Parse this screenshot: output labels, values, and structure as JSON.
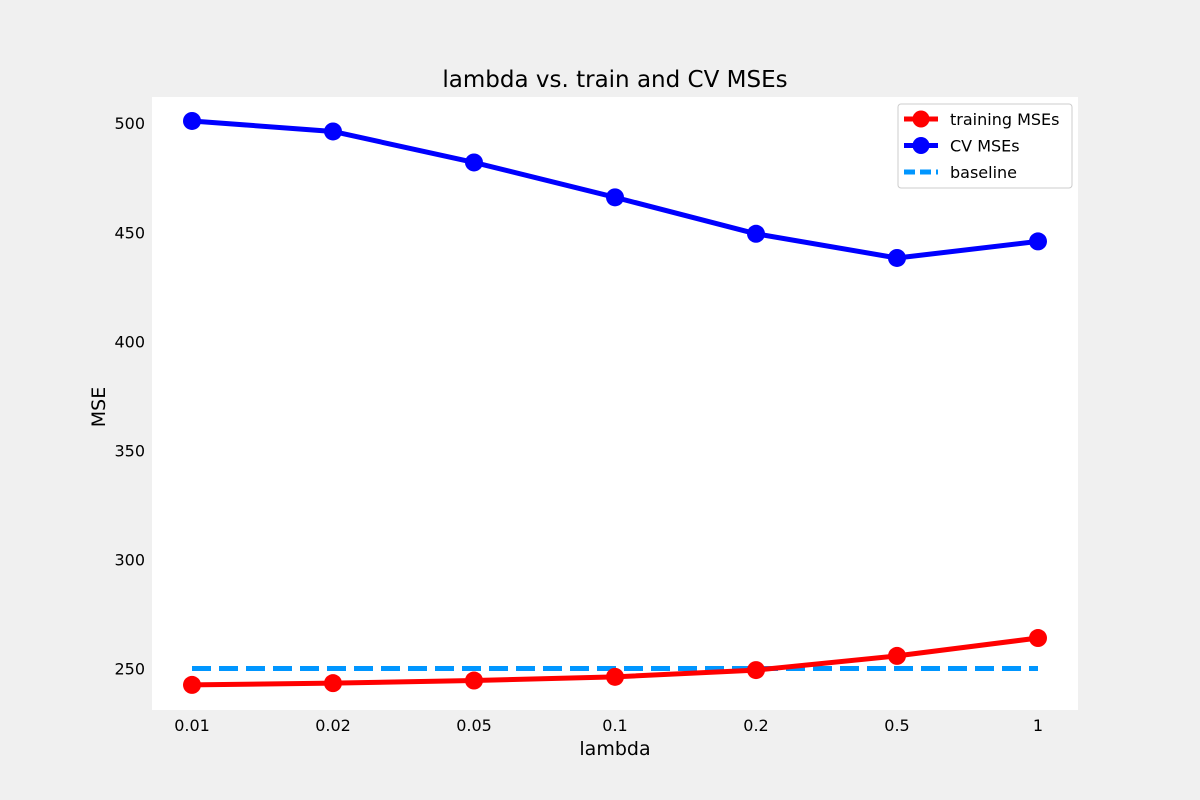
{
  "chart_data": {
    "type": "line",
    "title": "lambda vs. train and CV MSEs",
    "xlabel": "lambda",
    "ylabel": "MSE",
    "categories": [
      "0.01",
      "0.02",
      "0.05",
      "0.1",
      "0.2",
      "0.5",
      "1"
    ],
    "ylim": [
      231,
      512
    ],
    "yticks": [
      250,
      300,
      350,
      400,
      450,
      500
    ],
    "grid": false,
    "legend_position": "top-right",
    "series": [
      {
        "name": "training MSEs",
        "color": "#ff0000",
        "marker": "circle",
        "linestyle": "solid",
        "values": [
          242.5,
          243.3,
          244.5,
          246.2,
          249.3,
          255.8,
          264.0
        ]
      },
      {
        "name": "CV MSEs",
        "color": "#0000ff",
        "marker": "circle",
        "linestyle": "solid",
        "values": [
          501.0,
          496.2,
          482.0,
          466.0,
          449.3,
          438.2,
          445.8
        ]
      },
      {
        "name": "baseline",
        "color": "#0096ff",
        "marker": "none",
        "linestyle": "dashed",
        "values": [
          250,
          250,
          250,
          250,
          250,
          250,
          250
        ]
      }
    ]
  }
}
